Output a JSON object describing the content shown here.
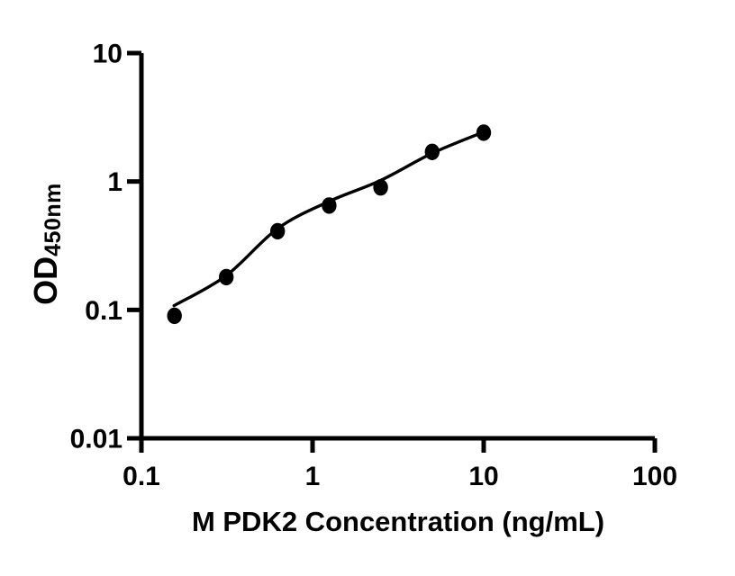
{
  "chart_data": {
    "type": "scatter",
    "title": "",
    "xlabel": "M PDK2 Concentration (ng/mL)",
    "ylabel": "OD",
    "ylabel_subscript": "450nm",
    "x_scale": "log",
    "y_scale": "log",
    "xlim": [
      0.1,
      100
    ],
    "ylim": [
      0.01,
      10
    ],
    "x_ticks": [
      0.1,
      1,
      10,
      100
    ],
    "x_tick_labels": [
      "0.1",
      "1",
      "10",
      "100"
    ],
    "y_ticks": [
      0.01,
      0.1,
      1,
      10
    ],
    "y_tick_labels": [
      "0.01",
      "0.1",
      "1",
      "10"
    ],
    "grid": false,
    "legend_position": "none",
    "series": [
      {
        "name": "standard-points",
        "marker": "filled-circle",
        "color": "#000000",
        "x": [
          0.156,
          0.313,
          0.625,
          1.25,
          2.5,
          5,
          10
        ],
        "y": [
          0.09,
          0.18,
          0.41,
          0.65,
          0.9,
          1.7,
          2.4
        ]
      }
    ],
    "fit_curve": {
      "name": "fitted-curve",
      "color": "#000000",
      "x": [
        0.155,
        0.313,
        0.625,
        1.25,
        2.5,
        5,
        10
      ],
      "y": [
        0.108,
        0.185,
        0.43,
        0.7,
        1.02,
        1.66,
        2.43
      ]
    }
  },
  "colors": {
    "foreground": "#000000",
    "background": "#ffffff"
  }
}
